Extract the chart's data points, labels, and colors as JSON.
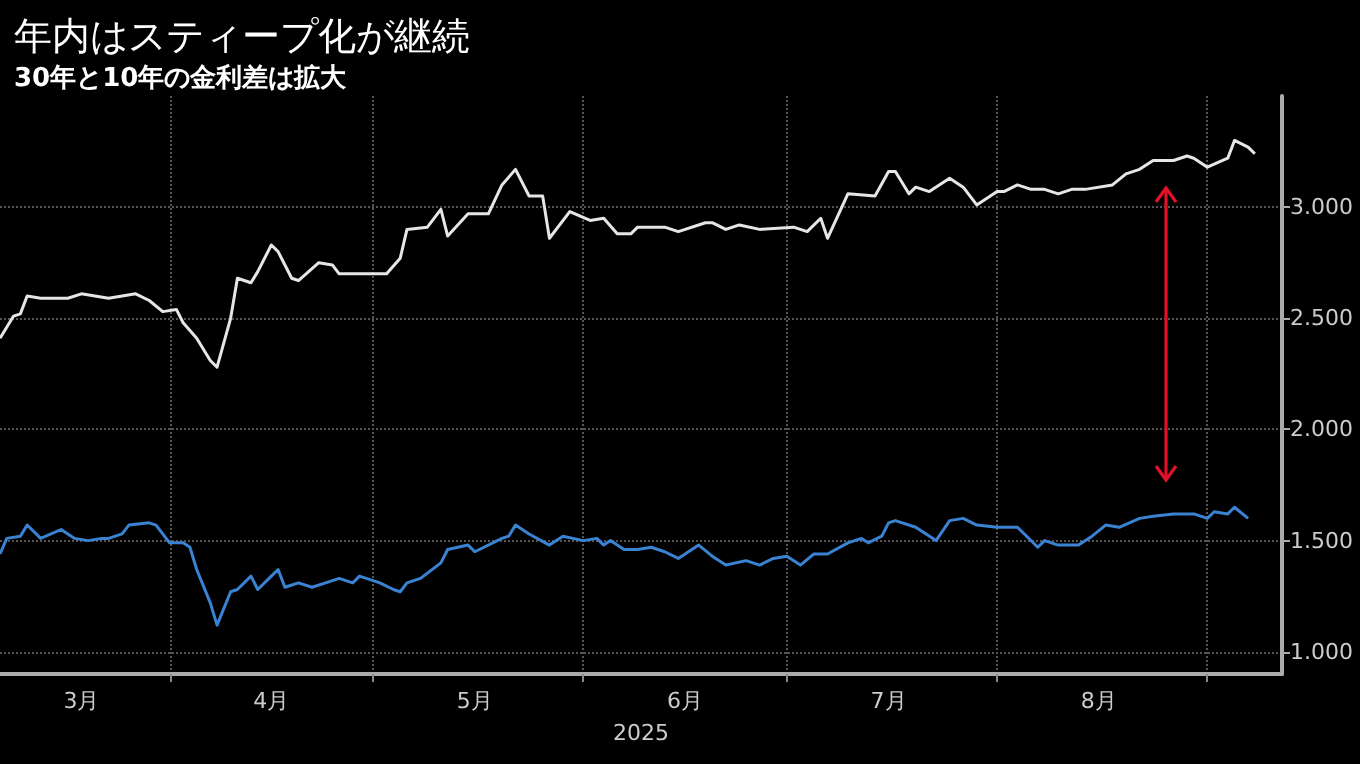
{
  "chart_data": {
    "type": "line",
    "title": "年内はスティープ化が継続",
    "subtitle": "30年と10年の金利差は拡大",
    "xlabel": "2025",
    "xlim": [
      "2025-03-07",
      "2025-09-12"
    ],
    "ylim": [
      0.9,
      3.5
    ],
    "xticks": [
      {
        "value": "2025-04-01",
        "label": null
      },
      {
        "value": "2025-05-01",
        "label": null
      },
      {
        "value": "2025-06-01",
        "label": null
      },
      {
        "value": "2025-07-01",
        "label": null
      },
      {
        "value": "2025-08-01",
        "label": null
      },
      {
        "value": "2025-09-01",
        "label": null
      },
      {
        "value": "2025-03-19",
        "label": "3月"
      },
      {
        "value": "2025-04-16",
        "label": "4月"
      },
      {
        "value": "2025-05-16",
        "label": "5月"
      },
      {
        "value": "2025-06-16",
        "label": "6月"
      },
      {
        "value": "2025-07-16",
        "label": "7月"
      },
      {
        "value": "2025-08-16",
        "label": "8月"
      }
    ],
    "yticks": [
      {
        "value": 1,
        "label": "1.000"
      },
      {
        "value": 1.5,
        "label": "1.500"
      },
      {
        "value": 2,
        "label": "2.000"
      },
      {
        "value": 2.5,
        "label": "2.500"
      },
      {
        "value": 3,
        "label": "3.000"
      }
    ],
    "grid": true,
    "series": [
      {
        "color": "#e6e6e6",
        "x": [
          "2025-03-07",
          "2025-03-09",
          "2025-03-10",
          "2025-03-11",
          "2025-03-13",
          "2025-03-17",
          "2025-03-19",
          "2025-03-23",
          "2025-03-25",
          "2025-03-27",
          "2025-03-29",
          "2025-03-31",
          "2025-04-02",
          "2025-04-03",
          "2025-04-05",
          "2025-04-07",
          "2025-04-08",
          "2025-04-10",
          "2025-04-11",
          "2025-04-13",
          "2025-04-14",
          "2025-04-16",
          "2025-04-17",
          "2025-04-19",
          "2025-04-20",
          "2025-04-23",
          "2025-04-25",
          "2025-04-26",
          "2025-04-29",
          "2025-05-03",
          "2025-05-05",
          "2025-05-06",
          "2025-05-09",
          "2025-05-11",
          "2025-05-12",
          "2025-05-15",
          "2025-05-18",
          "2025-05-20",
          "2025-05-22",
          "2025-05-24",
          "2025-05-26",
          "2025-05-27",
          "2025-05-30",
          "2025-06-02",
          "2025-06-04",
          "2025-06-06",
          "2025-06-08",
          "2025-06-09",
          "2025-06-13",
          "2025-06-15",
          "2025-06-19",
          "2025-06-20",
          "2025-06-22",
          "2025-06-24",
          "2025-06-27",
          "2025-07-02",
          "2025-07-04",
          "2025-07-06",
          "2025-07-07",
          "2025-07-10",
          "2025-07-14",
          "2025-07-16",
          "2025-07-17",
          "2025-07-19",
          "2025-07-20",
          "2025-07-22",
          "2025-07-25",
          "2025-07-27",
          "2025-07-29",
          "2025-08-01",
          "2025-08-02",
          "2025-08-04",
          "2025-08-06",
          "2025-08-08",
          "2025-08-10",
          "2025-08-12",
          "2025-08-14",
          "2025-08-18",
          "2025-08-20",
          "2025-08-22",
          "2025-08-24",
          "2025-08-27",
          "2025-08-29",
          "2025-08-30",
          "2025-09-01",
          "2025-09-04",
          "2025-09-05",
          "2025-09-07",
          "2025-09-08"
        ],
        "values": [
          2.41,
          2.51,
          2.52,
          2.6,
          2.59,
          2.59,
          2.61,
          2.59,
          2.6,
          2.61,
          2.58,
          2.53,
          2.54,
          2.48,
          2.41,
          2.31,
          2.28,
          2.5,
          2.68,
          2.66,
          2.71,
          2.83,
          2.8,
          2.68,
          2.67,
          2.75,
          2.74,
          2.7,
          2.7,
          2.7,
          2.77,
          2.9,
          2.91,
          2.99,
          2.87,
          2.97,
          2.97,
          3.1,
          3.17,
          3.05,
          3.05,
          2.86,
          2.98,
          2.94,
          2.95,
          2.88,
          2.88,
          2.91,
          2.91,
          2.89,
          2.93,
          2.93,
          2.9,
          2.92,
          2.9,
          2.91,
          2.89,
          2.95,
          2.86,
          3.06,
          3.05,
          3.16,
          3.16,
          3.06,
          3.09,
          3.07,
          3.13,
          3.09,
          3.01,
          3.07,
          3.07,
          3.1,
          3.08,
          3.08,
          3.06,
          3.08,
          3.08,
          3.1,
          3.15,
          3.17,
          3.21,
          3.21,
          3.23,
          3.22,
          3.18,
          3.22,
          3.3,
          3.27,
          3.24
        ]
      },
      {
        "color": "#3a82d2",
        "x": [
          "2025-03-07",
          "2025-03-08",
          "2025-03-10",
          "2025-03-11",
          "2025-03-13",
          "2025-03-16",
          "2025-03-18",
          "2025-03-20",
          "2025-03-22",
          "2025-03-23",
          "2025-03-25",
          "2025-03-26",
          "2025-03-29",
          "2025-03-30",
          "2025-04-01",
          "2025-04-03",
          "2025-04-04",
          "2025-04-05",
          "2025-04-07",
          "2025-04-08",
          "2025-04-10",
          "2025-04-11",
          "2025-04-13",
          "2025-04-14",
          "2025-04-16",
          "2025-04-17",
          "2025-04-18",
          "2025-04-20",
          "2025-04-22",
          "2025-04-24",
          "2025-04-26",
          "2025-04-28",
          "2025-04-29",
          "2025-05-02",
          "2025-05-04",
          "2025-05-05",
          "2025-05-06",
          "2025-05-08",
          "2025-05-11",
          "2025-05-12",
          "2025-05-15",
          "2025-05-16",
          "2025-05-20",
          "2025-05-21",
          "2025-05-22",
          "2025-05-24",
          "2025-05-27",
          "2025-05-29",
          "2025-06-01",
          "2025-06-03",
          "2025-06-04",
          "2025-06-05",
          "2025-06-07",
          "2025-06-09",
          "2025-06-11",
          "2025-06-13",
          "2025-06-15",
          "2025-06-18",
          "2025-06-20",
          "2025-06-22",
          "2025-06-25",
          "2025-06-27",
          "2025-06-29",
          "2025-07-01",
          "2025-07-03",
          "2025-07-05",
          "2025-07-07",
          "2025-07-10",
          "2025-07-12",
          "2025-07-13",
          "2025-07-15",
          "2025-07-16",
          "2025-07-17",
          "2025-07-20",
          "2025-07-23",
          "2025-07-25",
          "2025-07-27",
          "2025-07-29",
          "2025-08-01",
          "2025-08-04",
          "2025-08-07",
          "2025-08-08",
          "2025-08-10",
          "2025-08-13",
          "2025-08-15",
          "2025-08-17",
          "2025-08-19",
          "2025-08-22",
          "2025-08-24",
          "2025-08-27",
          "2025-08-30",
          "2025-09-01",
          "2025-09-02",
          "2025-09-04",
          "2025-09-05",
          "2025-09-07"
        ],
        "values": [
          1.44,
          1.51,
          1.52,
          1.57,
          1.51,
          1.55,
          1.51,
          1.5,
          1.51,
          1.51,
          1.53,
          1.57,
          1.58,
          1.57,
          1.49,
          1.49,
          1.47,
          1.37,
          1.22,
          1.12,
          1.27,
          1.28,
          1.34,
          1.28,
          1.34,
          1.37,
          1.29,
          1.31,
          1.29,
          1.31,
          1.33,
          1.31,
          1.34,
          1.31,
          1.28,
          1.27,
          1.31,
          1.33,
          1.4,
          1.46,
          1.48,
          1.45,
          1.51,
          1.52,
          1.57,
          1.53,
          1.48,
          1.52,
          1.5,
          1.51,
          1.48,
          1.5,
          1.46,
          1.46,
          1.47,
          1.45,
          1.42,
          1.48,
          1.43,
          1.39,
          1.41,
          1.39,
          1.42,
          1.43,
          1.39,
          1.44,
          1.44,
          1.49,
          1.51,
          1.49,
          1.52,
          1.58,
          1.59,
          1.56,
          1.5,
          1.59,
          1.6,
          1.57,
          1.56,
          1.56,
          1.47,
          1.5,
          1.48,
          1.48,
          1.52,
          1.57,
          1.56,
          1.6,
          1.61,
          1.62,
          1.62,
          1.6,
          1.63,
          1.62,
          1.65,
          1.6
        ]
      }
    ]
  }
}
